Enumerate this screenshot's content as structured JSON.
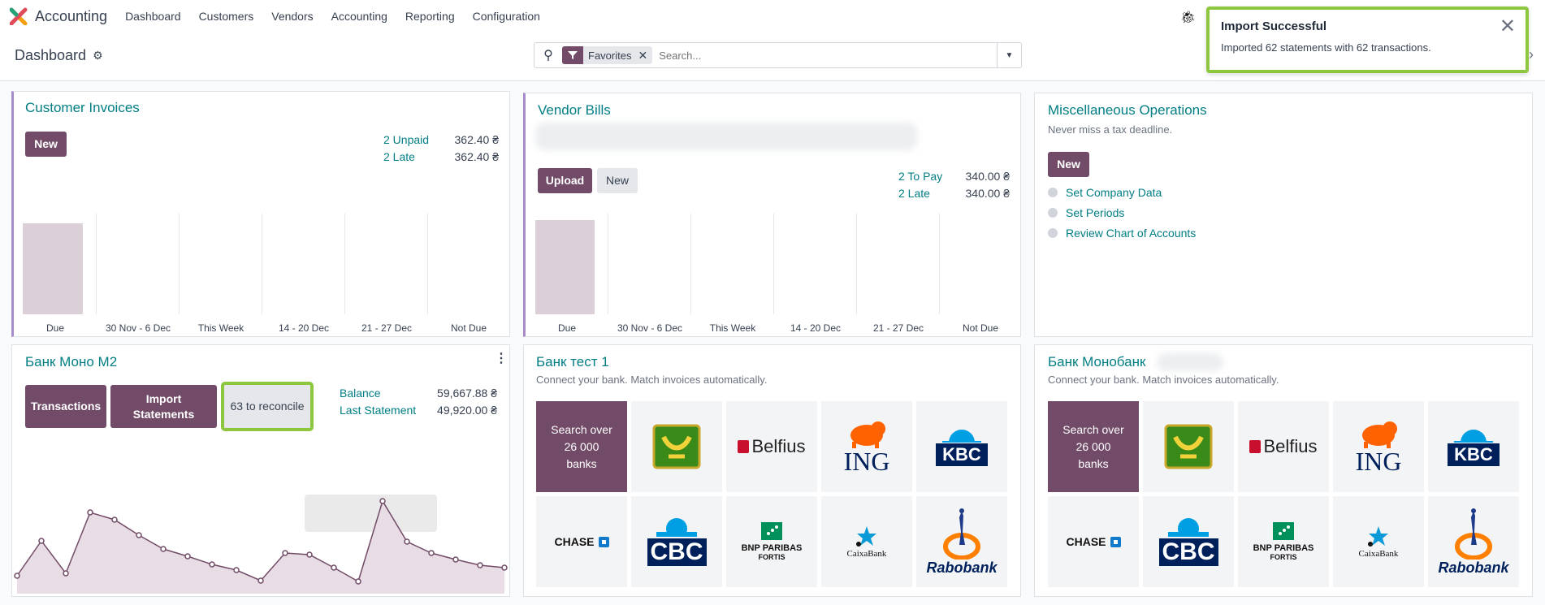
{
  "app": {
    "name": "Accounting"
  },
  "nav": {
    "items": [
      "Dashboard",
      "Customers",
      "Vendors",
      "Accounting",
      "Reporting",
      "Configuration"
    ]
  },
  "breadcrumb": {
    "title": "Dashboard"
  },
  "search": {
    "facet_label": "Favorites",
    "placeholder": "Search..."
  },
  "toast": {
    "title": "Import Successful",
    "body": "Imported 62 statements with 62 transactions."
  },
  "customer_invoices": {
    "title": "Customer Invoices",
    "new_label": "New",
    "stats": [
      {
        "label": "2 Unpaid",
        "value": "362.40 ₴"
      },
      {
        "label": "2 Late",
        "value": "362.40 ₴"
      }
    ],
    "graph_labels": [
      "Due",
      "30 Nov - 6 Dec",
      "This Week",
      "14 - 20 Dec",
      "21 - 27 Dec",
      "Not Due"
    ]
  },
  "vendor_bills": {
    "title": "Vendor Bills",
    "upload_label": "Upload",
    "new_label": "New",
    "stats": [
      {
        "label": "2 To Pay",
        "value": "340.00 ₴"
      },
      {
        "label": "2 Late",
        "value": "340.00 ₴"
      }
    ],
    "graph_labels": [
      "Due",
      "30 Nov - 6 Dec",
      "This Week",
      "14 - 20 Dec",
      "21 - 27 Dec",
      "Not Due"
    ]
  },
  "misc_ops": {
    "title": "Miscellaneous Operations",
    "subtitle": "Never miss a tax deadline.",
    "new_label": "New",
    "todos": [
      "Set Company Data",
      "Set Periods",
      "Review Chart of Accounts"
    ]
  },
  "bank_mono": {
    "title": "Банк Моно М2",
    "transactions_label": "Transactions",
    "import_label": "Import Statements",
    "reconcile_label": "63 to reconcile",
    "stats": [
      {
        "label": "Balance",
        "value": "59,667.88 ₴"
      },
      {
        "label": "Last Statement",
        "value": "49,920.00 ₴"
      }
    ]
  },
  "bank_test": {
    "title": "Банк тест 1",
    "subtitle": "Connect your bank. Match invoices automatically.",
    "search_tile": "Search over 26 000 banks"
  },
  "bank_monobank": {
    "title": "Банк Монобанк",
    "subtitle": "Connect your bank. Match invoices automatically.",
    "search_tile": "Search over 26 000 banks"
  },
  "bank_logos": {
    "belfius": "Belfius",
    "ing": "ING",
    "kbc": "KBC",
    "chase": "CHASE",
    "cbc": "CBC",
    "bnp_line1": "BNP PARIBAS",
    "bnp_line2": "FORTIS",
    "caixa": "CaixaBank",
    "rabobank": "Rabobank"
  }
}
